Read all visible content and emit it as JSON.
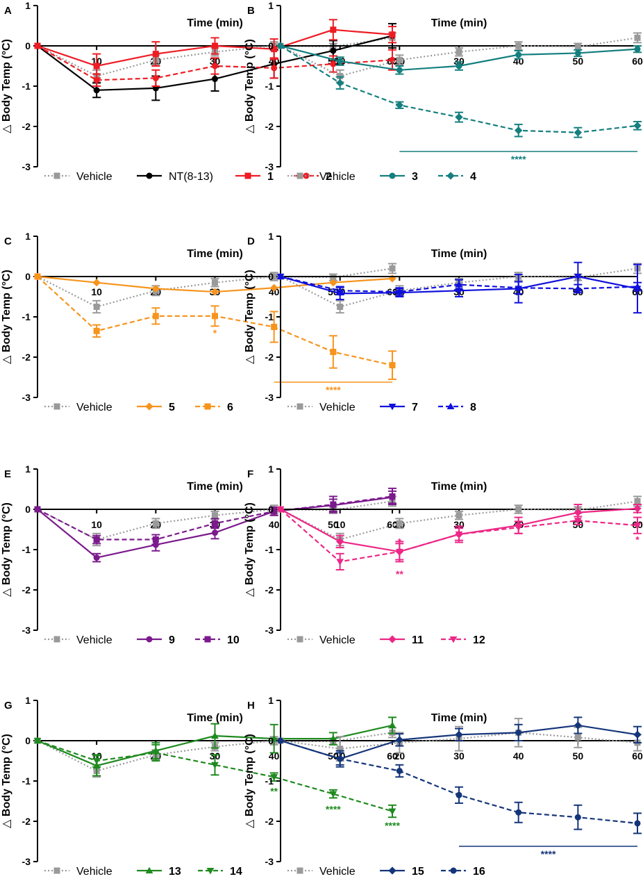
{
  "figure": {
    "xlabel": "Time (min)",
    "ylabel": "△ Body Temp (°C)",
    "x_ticks": [
      10,
      20,
      30,
      40,
      50,
      60
    ],
    "y_ticks": [
      1,
      0,
      -1,
      -2,
      -3
    ],
    "ylim": [
      -3,
      1
    ],
    "xlim": [
      0,
      60
    ]
  },
  "chart_data": [
    {
      "panel": "A",
      "type": "line",
      "xlabel": "Time (min)",
      "ylabel": "△ Body Temp (°C)",
      "x": [
        0,
        10,
        20,
        30,
        40,
        50,
        60
      ],
      "ylim": [
        -3,
        1
      ],
      "series": [
        {
          "name": "Vehicle",
          "color": "#9a9a9a",
          "dash": "dot",
          "marker": "square",
          "values": [
            0,
            -0.75,
            -0.35,
            -0.15,
            0.0,
            -0.02,
            0.2
          ],
          "err": [
            0,
            0.15,
            0.12,
            0.1,
            0.1,
            0.08,
            0.12
          ]
        },
        {
          "name": "NT(8-13)",
          "color": "#000000",
          "dash": "solid",
          "marker": "circle",
          "values": [
            0,
            -1.1,
            -1.05,
            -0.82,
            -0.45,
            -0.12,
            0.25
          ],
          "err": [
            0,
            0.18,
            0.3,
            0.3,
            0.35,
            0.25,
            0.3
          ]
        },
        {
          "name": "1",
          "color": "#ee1c24",
          "dash": "solid",
          "marker": "square",
          "values": [
            0,
            -0.5,
            -0.2,
            0.0,
            -0.08,
            0.4,
            0.28
          ],
          "err": [
            0,
            0.3,
            0.3,
            0.2,
            0.25,
            0.25,
            0.2
          ]
        },
        {
          "name": "2",
          "color": "#ee1c24",
          "dash": "dash",
          "marker": "circle",
          "values": [
            0,
            -0.85,
            -0.8,
            -0.5,
            -0.55,
            -0.45,
            -0.35
          ],
          "err": [
            0,
            0.15,
            0.2,
            0.2,
            0.25,
            0.2,
            0.25
          ]
        }
      ],
      "annotations": []
    },
    {
      "panel": "B",
      "type": "line",
      "xlabel": "Time (min)",
      "ylabel": "△ Body Temp (°C)",
      "x": [
        0,
        10,
        20,
        30,
        40,
        50,
        60
      ],
      "ylim": [
        -3,
        1
      ],
      "series": [
        {
          "name": "Vehicle",
          "color": "#9a9a9a",
          "dash": "dot",
          "marker": "square",
          "values": [
            0,
            -0.75,
            -0.35,
            -0.15,
            0.0,
            -0.02,
            0.2
          ],
          "err": [
            0,
            0.15,
            0.12,
            0.1,
            0.1,
            0.08,
            0.12
          ]
        },
        {
          "name": "3",
          "color": "#157f7f",
          "dash": "solid",
          "marker": "circle",
          "values": [
            0,
            -0.38,
            -0.6,
            -0.5,
            -0.22,
            -0.18,
            -0.08
          ],
          "err": [
            0,
            0.1,
            0.1,
            0.1,
            0.1,
            0.08,
            0.08
          ]
        },
        {
          "name": "4",
          "color": "#157f7f",
          "dash": "dash",
          "marker": "diamond",
          "values": [
            0,
            -0.92,
            -1.47,
            -1.77,
            -2.1,
            -2.15,
            -1.98
          ],
          "err": [
            0,
            0.15,
            0.08,
            0.12,
            0.15,
            0.12,
            0.1
          ]
        }
      ],
      "annotations": [
        {
          "text": "****",
          "color": "#157f7f",
          "bar_from": 20,
          "bar_to": 60,
          "at": 40
        }
      ]
    },
    {
      "panel": "C",
      "type": "line",
      "xlabel": "Time (min)",
      "ylabel": "△ Body Temp (°C)",
      "x": [
        0,
        10,
        20,
        30,
        40,
        50,
        60
      ],
      "ylim": [
        -3,
        1
      ],
      "series": [
        {
          "name": "Vehicle",
          "color": "#9a9a9a",
          "dash": "dot",
          "marker": "square",
          "values": [
            0,
            -0.75,
            -0.35,
            -0.15,
            0.0,
            -0.02,
            0.2
          ],
          "err": [
            0,
            0.15,
            0.12,
            0.1,
            0.1,
            0.08,
            0.12
          ]
        },
        {
          "name": "5",
          "color": "#f7941d",
          "dash": "solid",
          "marker": "diamond",
          "values": [
            0,
            -0.15,
            -0.3,
            -0.38,
            -0.28,
            -0.15,
            -0.05
          ],
          "err": [
            0,
            0,
            0,
            0,
            0,
            0,
            0
          ]
        },
        {
          "name": "6",
          "color": "#f7941d",
          "dash": "dash",
          "marker": "square",
          "values": [
            0,
            -1.35,
            -0.98,
            -0.98,
            -1.25,
            -1.87,
            -2.2
          ],
          "err": [
            0,
            0.15,
            0.2,
            0.25,
            0.38,
            0.4,
            0.35
          ]
        }
      ],
      "annotations": [
        {
          "text": "*",
          "color": "#f7941d",
          "at": 30,
          "y": -1.4
        },
        {
          "text": "****",
          "color": "#f7941d",
          "bar_from": 40,
          "bar_to": 60,
          "at": 50
        }
      ]
    },
    {
      "panel": "D",
      "type": "line",
      "xlabel": "Time (min)",
      "ylabel": "△ Body Temp (°C)",
      "x": [
        0,
        10,
        20,
        30,
        40,
        50,
        60
      ],
      "ylim": [
        -3,
        1
      ],
      "series": [
        {
          "name": "Vehicle",
          "color": "#9a9a9a",
          "dash": "dot",
          "marker": "square",
          "values": [
            0,
            -0.75,
            -0.35,
            -0.15,
            0.0,
            -0.02,
            0.2
          ],
          "err": [
            0,
            0.15,
            0.12,
            0.1,
            0.1,
            0.08,
            0.12
          ]
        },
        {
          "name": "7",
          "color": "#1010dd",
          "dash": "solid",
          "marker": "triangle-down",
          "values": [
            0,
            -0.42,
            -0.4,
            -0.35,
            -0.3,
            0.0,
            -0.3
          ],
          "err": [
            0,
            0.15,
            0.1,
            0.15,
            0.35,
            0.35,
            0.6
          ]
        },
        {
          "name": "8",
          "color": "#1010dd",
          "dash": "dash",
          "marker": "triangle-up",
          "values": [
            0,
            -0.35,
            -0.38,
            -0.2,
            -0.28,
            -0.3,
            -0.25
          ],
          "err": [
            0,
            0.1,
            0.1,
            0.12,
            0.15,
            0.1,
            0.1
          ]
        }
      ],
      "annotations": []
    },
    {
      "panel": "E",
      "type": "line",
      "xlabel": "Time (min)",
      "ylabel": "△ Body Temp (°C)",
      "x": [
        0,
        10,
        20,
        30,
        40,
        50,
        60
      ],
      "ylim": [
        -3,
        1
      ],
      "series": [
        {
          "name": "Vehicle",
          "color": "#9a9a9a",
          "dash": "dot",
          "marker": "square",
          "values": [
            0,
            -0.75,
            -0.35,
            -0.15,
            0.0,
            -0.02,
            0.2
          ],
          "err": [
            0,
            0.15,
            0.12,
            0.1,
            0.1,
            0.08,
            0.12
          ]
        },
        {
          "name": "9",
          "color": "#7b1a8c",
          "dash": "solid",
          "marker": "circle",
          "values": [
            0,
            -1.2,
            -0.88,
            -0.58,
            -0.05,
            0.1,
            0.3
          ],
          "err": [
            0,
            0.1,
            0.15,
            0.15,
            0.1,
            0.15,
            0.15
          ]
        },
        {
          "name": "10",
          "color": "#7b1a8c",
          "dash": "dash",
          "marker": "square",
          "values": [
            0,
            -0.75,
            -0.75,
            -0.35,
            -0.05,
            0.12,
            0.32
          ],
          "err": [
            0,
            0.1,
            0.12,
            0.12,
            0.1,
            0.2,
            0.2
          ]
        }
      ],
      "annotations": []
    },
    {
      "panel": "F",
      "type": "line",
      "xlabel": "Time (min)",
      "ylabel": "△ Body Temp (°C)",
      "x": [
        0,
        10,
        20,
        30,
        40,
        50,
        60
      ],
      "ylim": [
        -3,
        1
      ],
      "series": [
        {
          "name": "Vehicle",
          "color": "#9a9a9a",
          "dash": "dot",
          "marker": "square",
          "values": [
            0,
            -0.75,
            -0.35,
            -0.15,
            0.0,
            -0.02,
            0.2
          ],
          "err": [
            0,
            0.15,
            0.12,
            0.1,
            0.1,
            0.08,
            0.12
          ]
        },
        {
          "name": "11",
          "color": "#ec2786",
          "dash": "solid",
          "marker": "diamond",
          "values": [
            0,
            -0.8,
            -1.05,
            -0.62,
            -0.4,
            -0.08,
            0.02
          ],
          "err": [
            0,
            0.15,
            0.25,
            0.2,
            0.2,
            0.2,
            0.1
          ]
        },
        {
          "name": "12",
          "color": "#ec2786",
          "dash": "dash",
          "marker": "triangle-down",
          "values": [
            0,
            -1.3,
            -1.05,
            -0.62,
            -0.45,
            -0.28,
            -0.4
          ],
          "err": [
            0,
            0.2,
            0.2,
            0.15,
            0.15,
            0.1,
            0.2
          ]
        }
      ],
      "annotations": [
        {
          "text": "*",
          "color": "#ec2786",
          "at": 20,
          "y": -0.8
        },
        {
          "text": "**",
          "color": "#ec2786",
          "at": 20,
          "y": -1.6
        },
        {
          "text": "*",
          "color": "#ec2786",
          "at": 60,
          "y": -0.75
        }
      ]
    },
    {
      "panel": "G",
      "type": "line",
      "xlabel": "Time (min)",
      "ylabel": "△ Body Temp (°C)",
      "x": [
        0,
        10,
        20,
        30,
        40,
        50,
        60
      ],
      "ylim": [
        -3,
        1
      ],
      "series": [
        {
          "name": "Vehicle",
          "color": "#9a9a9a",
          "dash": "dot",
          "marker": "square",
          "values": [
            0,
            -0.75,
            -0.35,
            -0.15,
            0.0,
            -0.02,
            0.2
          ],
          "err": [
            0,
            0.15,
            0.12,
            0.1,
            0.1,
            0.08,
            0.12
          ]
        },
        {
          "name": "13",
          "color": "#1f8a1f",
          "dash": "solid",
          "marker": "triangle-up",
          "values": [
            0,
            -0.62,
            -0.25,
            0.12,
            0.05,
            0.05,
            0.38
          ],
          "err": [
            0,
            0.25,
            0.2,
            0.3,
            0.35,
            0.15,
            0.2
          ]
        },
        {
          "name": "14",
          "color": "#1f8a1f",
          "dash": "dash",
          "marker": "triangle-down",
          "values": [
            0,
            -0.5,
            -0.3,
            -0.6,
            -0.9,
            -1.32,
            -1.75
          ],
          "err": [
            0,
            0.15,
            0.2,
            0.25,
            0.1,
            0.1,
            0.15
          ]
        }
      ],
      "annotations": [
        {
          "text": "**",
          "color": "#1f8a1f",
          "at": 40,
          "y": -1.25
        },
        {
          "text": "****",
          "color": "#1f8a1f",
          "at": 50,
          "y": -1.7
        },
        {
          "text": "****",
          "color": "#1f8a1f",
          "at": 60,
          "y": -2.1
        }
      ]
    },
    {
      "panel": "H",
      "type": "line",
      "xlabel": "Time (min)",
      "ylabel": "△ Body Temp (°C)",
      "x": [
        0,
        10,
        20,
        30,
        40,
        50,
        60
      ],
      "ylim": [
        -3,
        1
      ],
      "series": [
        {
          "name": "Vehicle",
          "color": "#9a9a9a",
          "dash": "dot",
          "marker": "square",
          "values": [
            0,
            -0.2,
            -0.05,
            0.05,
            0.2,
            0.08,
            -0.05
          ],
          "err": [
            0,
            0.3,
            0.25,
            0.3,
            0.35,
            0.25,
            0.2
          ]
        },
        {
          "name": "15",
          "color": "#14357a",
          "dash": "solid",
          "marker": "diamond",
          "values": [
            0,
            -0.45,
            0.02,
            0.15,
            0.2,
            0.38,
            0.15
          ],
          "err": [
            0,
            0.2,
            0.15,
            0.15,
            0.2,
            0.2,
            0.2
          ]
        },
        {
          "name": "16",
          "color": "#14357a",
          "dash": "dash",
          "marker": "circle",
          "values": [
            0,
            -0.45,
            -0.75,
            -1.35,
            -1.78,
            -1.9,
            -2.05
          ],
          "err": [
            0,
            0.15,
            0.15,
            0.2,
            0.25,
            0.3,
            0.25
          ]
        }
      ],
      "annotations": [
        {
          "text": "****",
          "color": "#14357a",
          "bar_from": 30,
          "bar_to": 60,
          "at": 45
        }
      ]
    }
  ]
}
